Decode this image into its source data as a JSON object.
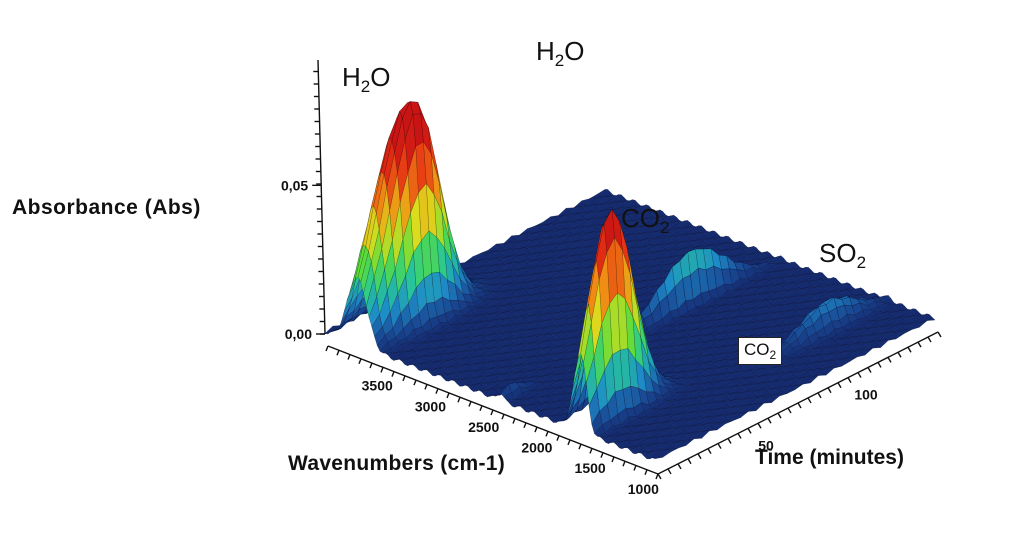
{
  "chart_data": {
    "type": "3d-surface",
    "ylabel": "Absorbance (Abs)",
    "xlabel": "Wavenumbers (cm-1)",
    "zlabel": "Time (minutes)",
    "y_ticks": [
      "0,05",
      "0,00"
    ],
    "x_ticks": [
      "3500",
      "3000",
      "2500",
      "2000",
      "1500",
      "1000"
    ],
    "z_ticks": [
      "50",
      "100"
    ],
    "xlim": [
      4000,
      900
    ],
    "ylim": [
      0,
      0.075
    ],
    "zlim": [
      0,
      140
    ],
    "peaks": [
      {
        "label": "H",
        "sub": "2",
        "tail": "O",
        "wavenumber": 3700,
        "time": 20,
        "absorbance": 0.062
      },
      {
        "label": "H",
        "sub": "2",
        "tail": "O",
        "wavenumber": 1600,
        "time": 15,
        "absorbance": 0.068
      },
      {
        "label": "CO",
        "sub": "2",
        "tail": "",
        "wavenumber": 2350,
        "time": 95,
        "absorbance": 0.018
      },
      {
        "label": "SO",
        "sub": "2",
        "tail": "",
        "wavenumber": 1350,
        "time": 110,
        "absorbance": 0.01
      }
    ],
    "annotation_box": {
      "label": "CO",
      "sub": "2"
    }
  }
}
